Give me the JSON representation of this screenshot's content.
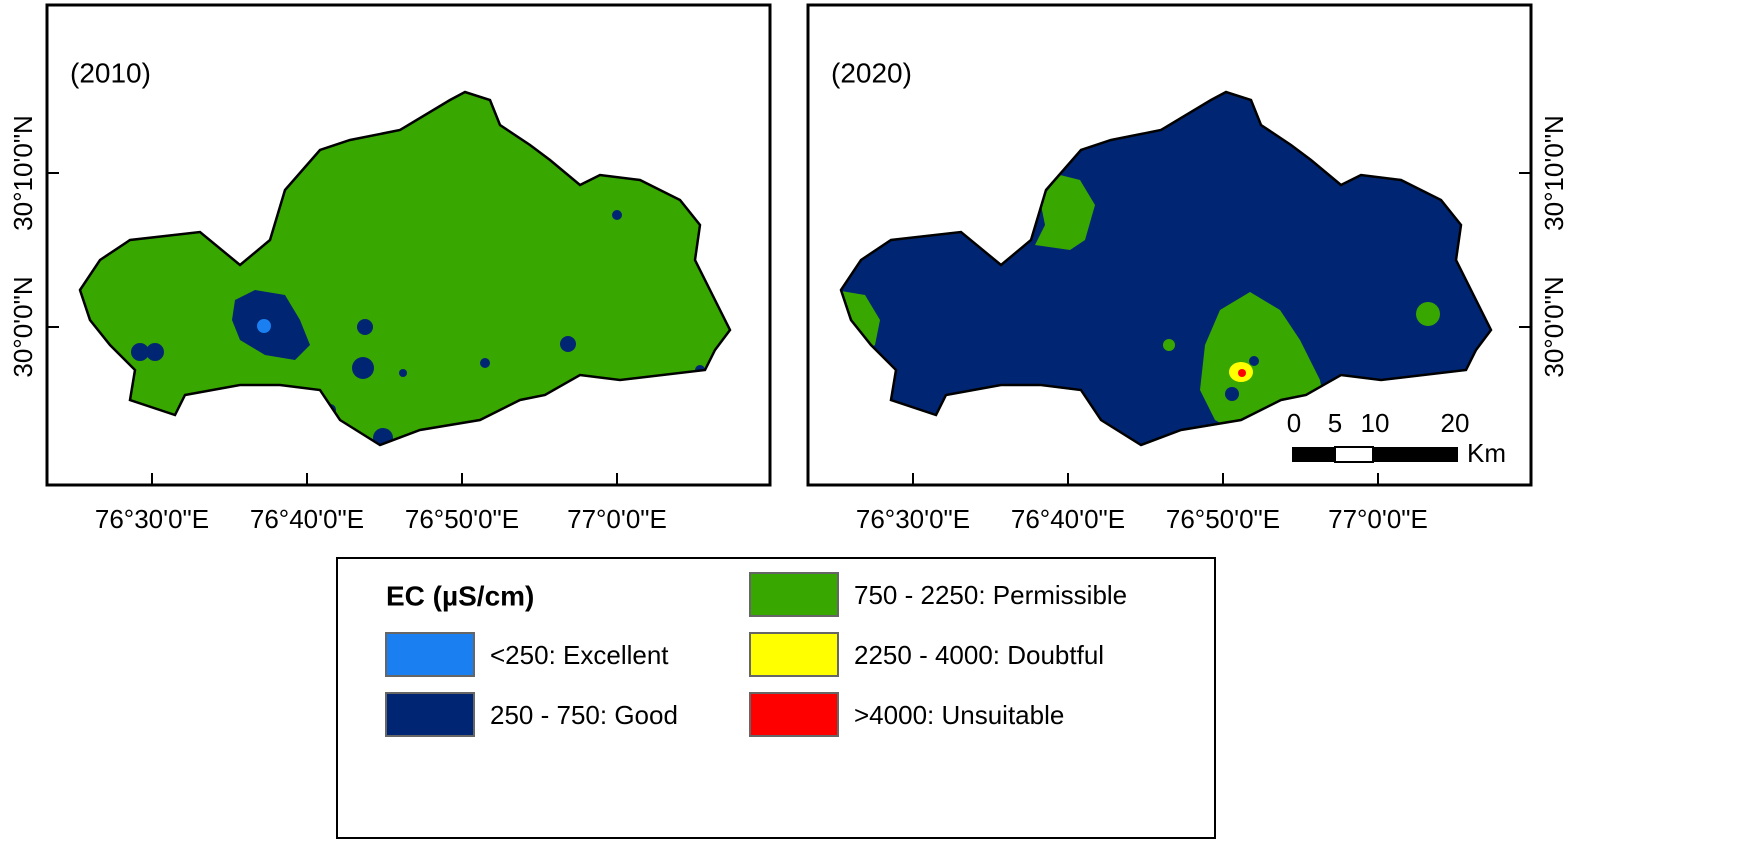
{
  "panels": [
    {
      "label": "(2010)",
      "x_tick_labels": [
        "76°30'0\"E",
        "76°40'0\"E",
        "76°50'0\"E",
        "77°0'0\"E"
      ],
      "y_tick_labels": [
        "30°10'0\"N",
        "30°0'0\"N"
      ]
    },
    {
      "label": "(2020)",
      "x_tick_labels": [
        "76°30'0\"E",
        "76°40'0\"E",
        "76°50'0\"E",
        "77°0'0\"E"
      ],
      "y_tick_labels": [
        "30°10'0\"N",
        "30°0'0\"N"
      ]
    }
  ],
  "scale_bar": {
    "labels": [
      "0",
      "5",
      "10",
      "20"
    ],
    "unit": "Km"
  },
  "legend": {
    "title": "EC (µS/cm)",
    "items": [
      {
        "label": "<250: Excellent",
        "color": "#1a7ff0"
      },
      {
        "label": "250 - 750: Good",
        "color": "#002673"
      },
      {
        "label": "750 - 2250: Permissible",
        "color": "#38a800"
      },
      {
        "label": "2250 - 4000: Doubtful",
        "color": "#ffff00"
      },
      {
        "label": ">4000: Unsuitable",
        "color": "#ff0000"
      }
    ]
  }
}
